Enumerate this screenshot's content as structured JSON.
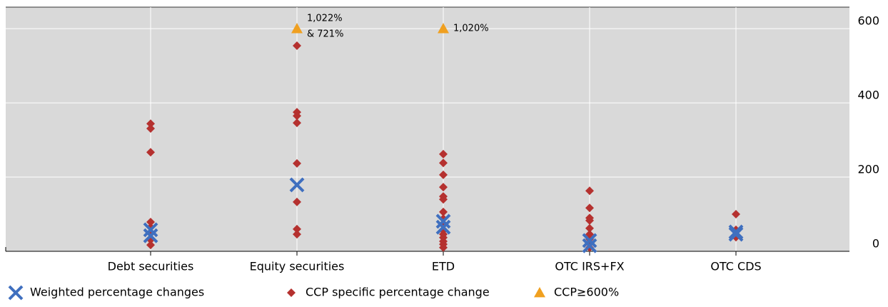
{
  "chart_data": {
    "type": "scatter",
    "categories": [
      "Debt securities",
      "Equity securities",
      "ETD",
      "OTC IRS+FX",
      "OTC CDS"
    ],
    "ylim": [
      0,
      658
    ],
    "yticks": [
      0,
      200,
      400,
      600
    ],
    "grid": true,
    "legend": "bottom",
    "series": [
      {
        "name": "Weighted percentage changes",
        "color": "#3f6fbf",
        "marker": "x",
        "x": [
          "Debt securities",
          "Debt securities",
          "Equity securities",
          "ETD",
          "ETD",
          "OTC IRS+FX",
          "OTC IRS+FX",
          "OTC CDS",
          "OTC CDS"
        ],
        "values": [
          58,
          42,
          179,
          81,
          65,
          29,
          15,
          52,
          46
        ]
      },
      {
        "name": "CCP specific percentage change",
        "color": "#b5312f",
        "marker": "diamond",
        "x": [
          "Debt securities",
          "Debt securities",
          "Debt securities",
          "Debt securities",
          "Debt securities",
          "Debt securities",
          "Debt securities",
          "Debt securities",
          "Equity securities",
          "Equity securities",
          "Equity securities",
          "Equity securities",
          "Equity securities",
          "Equity securities",
          "Equity securities",
          "Equity securities",
          "ETD",
          "ETD",
          "ETD",
          "ETD",
          "ETD",
          "ETD",
          "ETD",
          "ETD",
          "ETD",
          "ETD",
          "ETD",
          "ETD",
          "ETD",
          "ETD",
          "ETD",
          "OTC IRS+FX",
          "OTC IRS+FX",
          "OTC IRS+FX",
          "OTC IRS+FX",
          "OTC IRS+FX",
          "OTC IRS+FX",
          "OTC IRS+FX",
          "OTC IRS+FX",
          "OTC IRS+FX",
          "OTC CDS",
          "OTC CDS",
          "OTC CDS"
        ],
        "values": [
          344,
          331,
          267,
          79,
          65,
          48,
          31,
          17,
          554,
          375,
          365,
          346,
          237,
          133,
          60,
          46,
          262,
          238,
          206,
          173,
          148,
          140,
          106,
          88,
          71,
          56,
          46,
          37,
          27,
          19,
          10,
          163,
          117,
          90,
          83,
          62,
          46,
          33,
          21,
          10,
          100,
          58,
          38
        ]
      },
      {
        "name": "CCP≥600%",
        "color": "#f0a020",
        "marker": "triangle",
        "x": [
          "Equity securities",
          "ETD"
        ],
        "values": [
          600,
          600
        ],
        "annotations": [
          [
            "1,022%",
            "& 721%"
          ],
          [
            "1,020%"
          ]
        ]
      }
    ]
  }
}
